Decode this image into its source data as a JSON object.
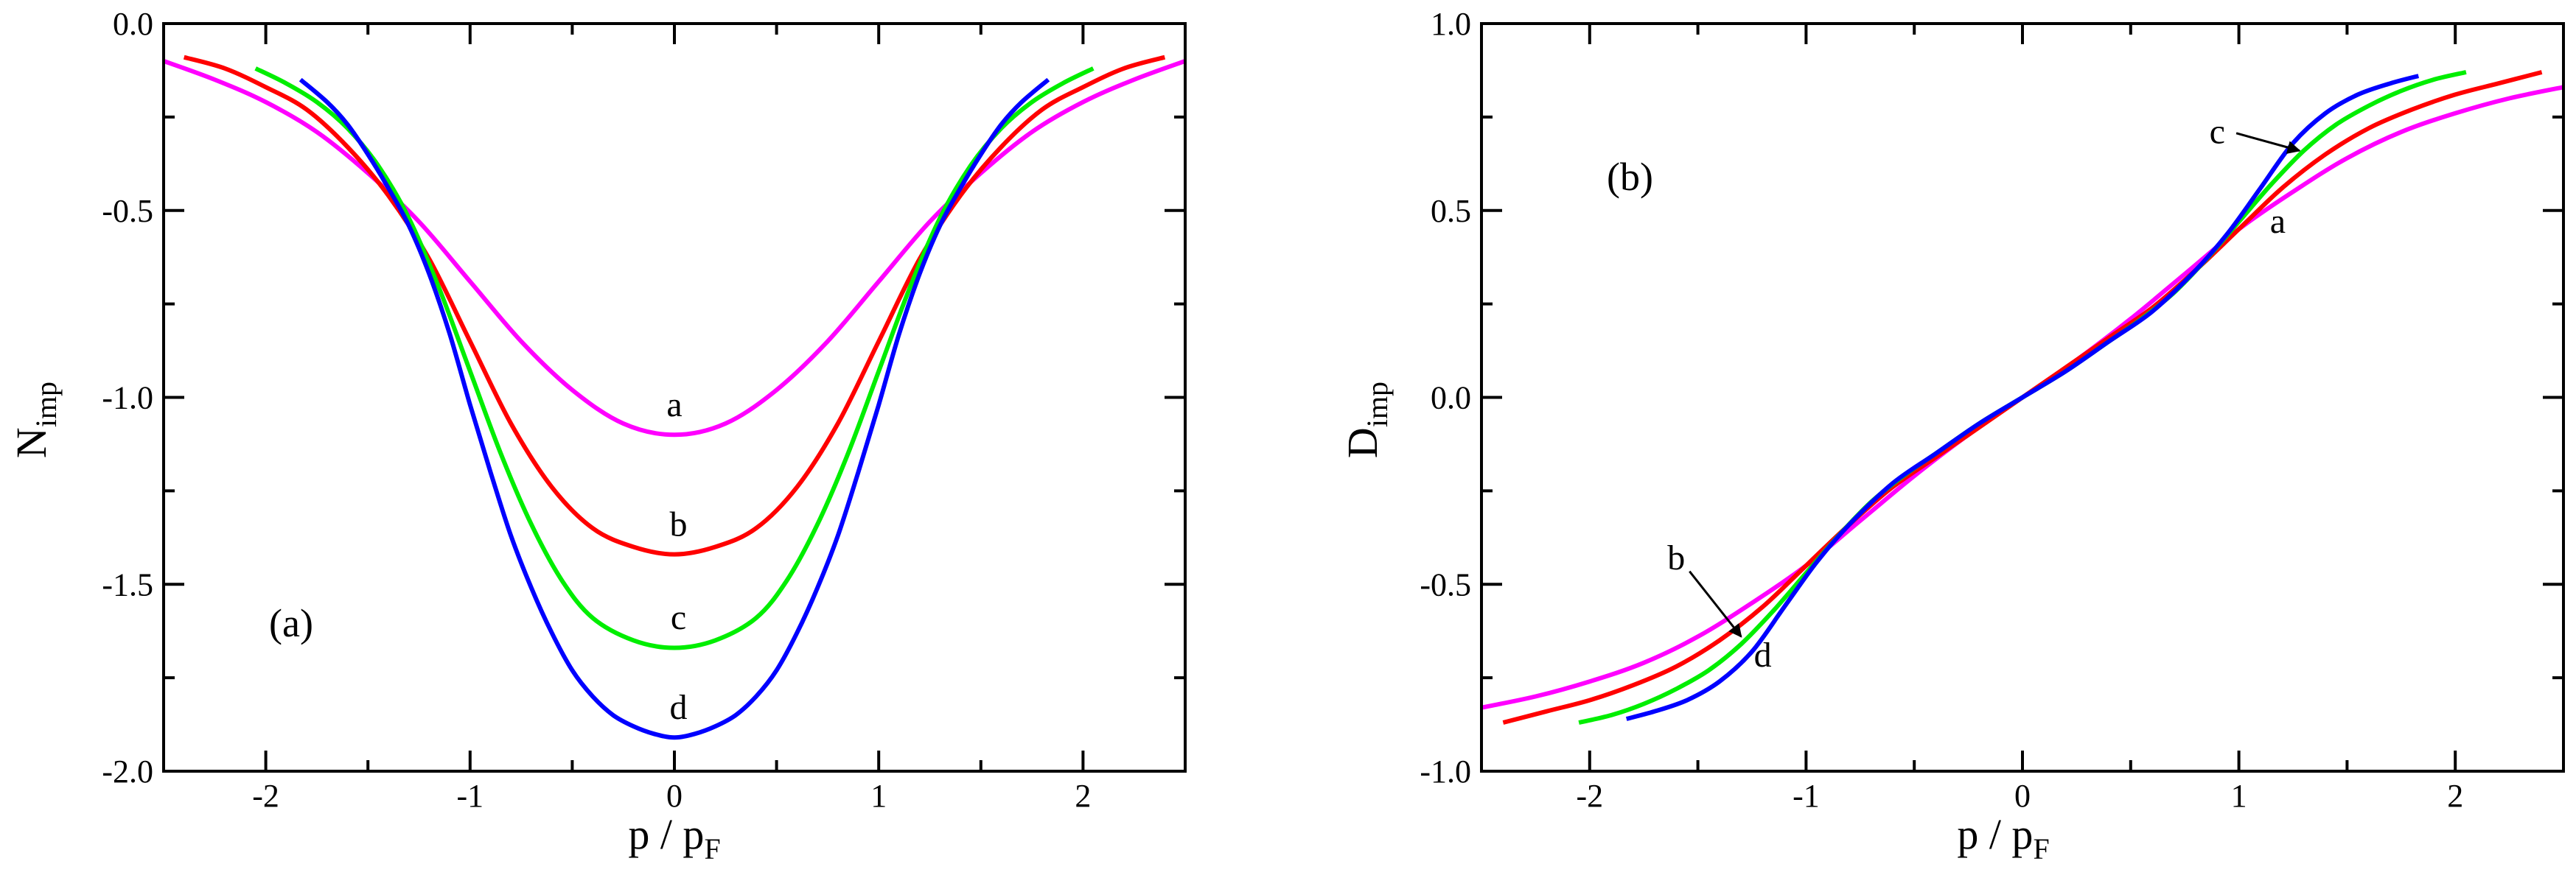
{
  "chart_data": [
    {
      "type": "line",
      "panel_label": "(a)",
      "xlabel": {
        "main": "p / p",
        "sub": "F"
      },
      "ylabel": {
        "main": "N",
        "sub": "imp"
      },
      "xlim": [
        -2.5,
        2.5
      ],
      "ylim": [
        -2.0,
        0.0
      ],
      "xticks": [
        -2,
        -1,
        0,
        1,
        2
      ],
      "xtick_labels": [
        "-2",
        "-1",
        "0",
        "1",
        "2"
      ],
      "yticks": [
        0.0,
        -0.5,
        -1.0,
        -1.5,
        -2.0
      ],
      "ytick_labels": [
        "0.0",
        "-0.5",
        "-1.0",
        "-1.5",
        "-2.0"
      ],
      "series": [
        {
          "name": "a",
          "color": "#ff00ff",
          "x": [
            -2.5,
            -2.25,
            -2.0,
            -1.75,
            -1.5,
            -1.25,
            -1.0,
            -0.75,
            -0.5,
            -0.25,
            0.0,
            0.25,
            0.5,
            0.75,
            1.0,
            1.25,
            1.5,
            1.75,
            2.0,
            2.25,
            2.5
          ],
          "y": [
            -0.1,
            -0.15,
            -0.21,
            -0.29,
            -0.4,
            -0.53,
            -0.69,
            -0.85,
            -0.98,
            -1.07,
            -1.1,
            -1.07,
            -0.98,
            -0.85,
            -0.69,
            -0.53,
            -0.4,
            -0.29,
            -0.21,
            -0.15,
            -0.1
          ]
        },
        {
          "name": "b",
          "color": "#ff0000",
          "x": [
            -2.4,
            -2.2,
            -2.0,
            -1.8,
            -1.6,
            -1.4,
            -1.2,
            -1.0,
            -0.8,
            -0.6,
            -0.4,
            -0.2,
            0.0,
            0.2,
            0.4,
            0.6,
            0.8,
            1.0,
            1.2,
            1.4,
            1.6,
            1.8,
            2.0,
            2.2,
            2.4
          ],
          "y": [
            -0.09,
            -0.12,
            -0.17,
            -0.23,
            -0.33,
            -0.46,
            -0.63,
            -0.85,
            -1.07,
            -1.24,
            -1.35,
            -1.4,
            -1.42,
            -1.4,
            -1.35,
            -1.24,
            -1.07,
            -0.85,
            -0.63,
            -0.46,
            -0.33,
            -0.23,
            -0.17,
            -0.12,
            -0.09
          ]
        },
        {
          "name": "c",
          "color": "#00ee00",
          "x": [
            -2.05,
            -1.9,
            -1.75,
            -1.6,
            -1.45,
            -1.3,
            -1.15,
            -1.0,
            -0.85,
            -0.7,
            -0.55,
            -0.4,
            -0.2,
            0.0,
            0.2,
            0.4,
            0.55,
            0.7,
            0.85,
            1.0,
            1.15,
            1.3,
            1.45,
            1.6,
            1.75,
            1.9,
            2.05
          ],
          "y": [
            -0.12,
            -0.16,
            -0.21,
            -0.28,
            -0.38,
            -0.52,
            -0.71,
            -0.93,
            -1.15,
            -1.34,
            -1.49,
            -1.59,
            -1.65,
            -1.67,
            -1.65,
            -1.59,
            -1.49,
            -1.34,
            -1.15,
            -0.93,
            -0.71,
            -0.52,
            -0.38,
            -0.28,
            -0.21,
            -0.16,
            -0.12
          ]
        },
        {
          "name": "d",
          "color": "#0000ff",
          "x": [
            -1.83,
            -1.7,
            -1.6,
            -1.5,
            -1.4,
            -1.3,
            -1.2,
            -1.1,
            -1.0,
            -0.9,
            -0.8,
            -0.7,
            -0.6,
            -0.5,
            -0.4,
            -0.3,
            -0.2,
            -0.1,
            0.0,
            0.1,
            0.2,
            0.3,
            0.4,
            0.5,
            0.6,
            0.7,
            0.8,
            0.9,
            1.0,
            1.1,
            1.2,
            1.3,
            1.4,
            1.5,
            1.6,
            1.7,
            1.83
          ],
          "y": [
            -0.15,
            -0.21,
            -0.27,
            -0.35,
            -0.44,
            -0.54,
            -0.67,
            -0.83,
            -1.02,
            -1.2,
            -1.37,
            -1.51,
            -1.63,
            -1.73,
            -1.8,
            -1.85,
            -1.88,
            -1.9,
            -1.91,
            -1.9,
            -1.88,
            -1.85,
            -1.8,
            -1.73,
            -1.63,
            -1.51,
            -1.37,
            -1.2,
            -1.02,
            -0.83,
            -0.67,
            -0.54,
            -0.44,
            -0.35,
            -0.27,
            -0.21,
            -0.15
          ]
        }
      ],
      "annotations": [
        {
          "text": "a",
          "x": 0.0,
          "y": -1.05
        },
        {
          "text": "b",
          "x": 0.02,
          "y": -1.37
        },
        {
          "text": "c",
          "x": 0.02,
          "y": -1.62
        },
        {
          "text": "d",
          "x": 0.02,
          "y": -1.86
        }
      ]
    },
    {
      "type": "line",
      "panel_label": "(b)",
      "xlabel": {
        "main": "p / p",
        "sub": "F"
      },
      "ylabel": {
        "main": "D",
        "sub": "imp"
      },
      "xlim": [
        -2.5,
        2.5
      ],
      "ylim": [
        -1.0,
        1.0
      ],
      "xticks": [
        -2,
        -1,
        0,
        1,
        2
      ],
      "xtick_labels": [
        "-2",
        "-1",
        "0",
        "1",
        "2"
      ],
      "yticks": [
        1.0,
        0.5,
        0.0,
        -0.5,
        -1.0
      ],
      "ytick_labels": [
        "1.0",
        "0.5",
        "0.0",
        "-0.5",
        "-1.0"
      ],
      "series": [
        {
          "name": "a",
          "color": "#ff00ff",
          "x": [
            -2.5,
            -2.25,
            -2.0,
            -1.75,
            -1.5,
            -1.25,
            -1.0,
            -0.75,
            -0.5,
            -0.25,
            0.0,
            0.25,
            0.5,
            0.75,
            1.0,
            1.25,
            1.5,
            1.75,
            2.0,
            2.25,
            2.5
          ],
          "y": [
            -0.83,
            -0.8,
            -0.76,
            -0.71,
            -0.64,
            -0.55,
            -0.45,
            -0.33,
            -0.21,
            -0.1,
            0.0,
            0.1,
            0.21,
            0.33,
            0.45,
            0.55,
            0.64,
            0.71,
            0.76,
            0.8,
            0.83
          ]
        },
        {
          "name": "b",
          "color": "#ff0000",
          "x": [
            -2.4,
            -2.2,
            -2.0,
            -1.8,
            -1.6,
            -1.4,
            -1.2,
            -1.0,
            -0.8,
            -0.6,
            -0.4,
            -0.2,
            0.0,
            0.2,
            0.4,
            0.6,
            0.8,
            1.0,
            1.2,
            1.4,
            1.6,
            1.8,
            2.0,
            2.2,
            2.4
          ],
          "y": [
            -0.87,
            -0.84,
            -0.81,
            -0.77,
            -0.72,
            -0.65,
            -0.56,
            -0.45,
            -0.34,
            -0.24,
            -0.16,
            -0.08,
            0.0,
            0.08,
            0.16,
            0.24,
            0.34,
            0.45,
            0.56,
            0.65,
            0.72,
            0.77,
            0.81,
            0.84,
            0.87
          ]
        },
        {
          "name": "c",
          "color": "#00ee00",
          "x": [
            -2.05,
            -1.9,
            -1.75,
            -1.6,
            -1.45,
            -1.3,
            -1.15,
            -1.0,
            -0.85,
            -0.7,
            -0.55,
            -0.4,
            -0.2,
            0.0,
            0.2,
            0.4,
            0.55,
            0.7,
            0.85,
            1.0,
            1.15,
            1.3,
            1.45,
            1.6,
            1.75,
            1.9,
            2.05
          ],
          "y": [
            -0.87,
            -0.85,
            -0.82,
            -0.78,
            -0.73,
            -0.66,
            -0.57,
            -0.47,
            -0.37,
            -0.28,
            -0.21,
            -0.15,
            -0.07,
            0.0,
            0.07,
            0.15,
            0.21,
            0.28,
            0.37,
            0.47,
            0.57,
            0.66,
            0.73,
            0.78,
            0.82,
            0.85,
            0.87
          ]
        },
        {
          "name": "d",
          "color": "#0000ff",
          "x": [
            -1.83,
            -1.7,
            -1.55,
            -1.4,
            -1.25,
            -1.1,
            -0.95,
            -0.8,
            -0.6,
            -0.4,
            -0.2,
            0.0,
            0.2,
            0.4,
            0.6,
            0.8,
            0.95,
            1.1,
            1.25,
            1.4,
            1.55,
            1.7,
            1.83
          ],
          "y": [
            -0.86,
            -0.84,
            -0.81,
            -0.76,
            -0.68,
            -0.56,
            -0.44,
            -0.34,
            -0.23,
            -0.15,
            -0.07,
            0.0,
            0.07,
            0.15,
            0.23,
            0.34,
            0.44,
            0.56,
            0.68,
            0.76,
            0.81,
            0.84,
            0.86
          ]
        }
      ],
      "annotations": [
        {
          "text": "a",
          "x": 1.18,
          "y": 0.44,
          "arrow": false
        },
        {
          "text": "c",
          "x": 0.9,
          "y": 0.68,
          "arrow": true,
          "arrow_to": [
            1.28,
            0.66
          ]
        },
        {
          "text": "b",
          "x": -1.6,
          "y": -0.46,
          "arrow": true,
          "arrow_to": [
            -1.3,
            -0.64
          ]
        },
        {
          "text": "d",
          "x": -1.2,
          "y": -0.72,
          "arrow": false
        }
      ]
    }
  ]
}
